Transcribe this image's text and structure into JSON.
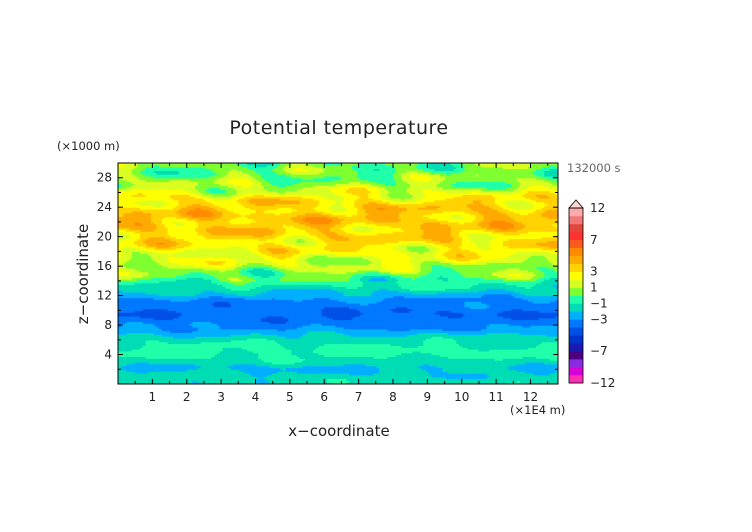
{
  "chart_data": {
    "type": "heatmap",
    "title": "Potential temperature",
    "xlabel": "x−coordinate",
    "ylabel": "z−coordinate",
    "x_unit": "(×1E4 m)",
    "y_unit": "(×1000 m)",
    "time_label": "132000 s",
    "xlim": [
      0,
      12.8
    ],
    "ylim": [
      0,
      30
    ],
    "x_ticks": [
      1,
      2,
      3,
      4,
      5,
      6,
      7,
      8,
      9,
      10,
      11,
      12
    ],
    "y_ticks": [
      4,
      8,
      12,
      16,
      20,
      24,
      28
    ],
    "colorbar": {
      "levels": [
        -12,
        -10,
        -9,
        -8,
        -7,
        -6,
        -5,
        -4,
        -3,
        -2,
        -1,
        0,
        1,
        2,
        3,
        4,
        5,
        6,
        7,
        8,
        9,
        10,
        12
      ],
      "labels": [
        "12",
        "7",
        "3",
        "1",
        "−1",
        "−3",
        "−7",
        "−12"
      ],
      "label_values": [
        12,
        7,
        3,
        1,
        -1,
        -3,
        -7,
        -12
      ],
      "colors": [
        "#ff2fb4",
        "#d700d7",
        "#8a2be2",
        "#4b0082",
        "#1a1ab0",
        "#0033cc",
        "#0050e8",
        "#0078ff",
        "#00b0ff",
        "#00dcb4",
        "#20ffaa",
        "#80ff30",
        "#d8ff20",
        "#ffff00",
        "#ffd200",
        "#ffaa00",
        "#ff8c00",
        "#ff5a1e",
        "#ff3232",
        "#e0463c",
        "#f07878",
        "#ffaaaa"
      ]
    },
    "field_description_layers": [
      {
        "z_range": [
          0,
          1.5
        ],
        "value": -1.5
      },
      {
        "z_range": [
          1.5,
          3
        ],
        "value": -2.2
      },
      {
        "z_range": [
          3,
          6
        ],
        "value": -0.6
      },
      {
        "z_range": [
          6,
          7.5
        ],
        "value": -2.0
      },
      {
        "z_range": [
          7.5,
          11.5
        ],
        "value": -4.0
      },
      {
        "z_range": [
          11.5,
          13
        ],
        "value": -2.3
      },
      {
        "z_range": [
          13,
          15
        ],
        "value": -0.5
      },
      {
        "z_range": [
          15,
          17
        ],
        "value": 1.2
      },
      {
        "z_range": [
          17,
          19
        ],
        "value": 2.4
      },
      {
        "z_range": [
          19,
          21
        ],
        "value": 3.2
      },
      {
        "z_range": [
          21,
          24
        ],
        "value": 3.8
      },
      {
        "z_range": [
          24,
          26
        ],
        "value": 3.0
      },
      {
        "z_range": [
          26,
          28
        ],
        "value": 0.8
      },
      {
        "z_range": [
          28,
          30
        ],
        "value": 0.2
      }
    ]
  }
}
